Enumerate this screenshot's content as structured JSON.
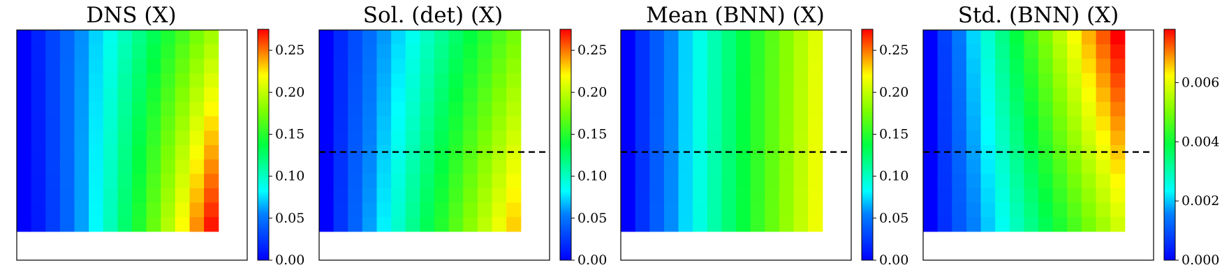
{
  "chart_data": [
    {
      "type": "heatmap",
      "title": "DNS (X)",
      "grid": false,
      "legend": "colorbar-right",
      "value_range": [
        0,
        0.275
      ],
      "colorbar_ticks": [
        "0.00",
        "0.05",
        "0.10",
        "0.15",
        "0.20",
        "0.25"
      ],
      "colorbar_tick_values": [
        0.0,
        0.05,
        0.1,
        0.15,
        0.2,
        0.25
      ],
      "grid_size": [
        14,
        14
      ],
      "data_extent": [
        0.875,
        0.875
      ],
      "field_model": "dns",
      "left_edge_value": 0.0,
      "right_edge_value_range": [
        0.19,
        0.27
      ],
      "dashed_line_value": null
    },
    {
      "type": "heatmap",
      "title": "Sol. (det) (X)",
      "grid": false,
      "legend": "colorbar-right",
      "value_range": [
        0,
        0.275
      ],
      "colorbar_ticks": [
        "0.00",
        "0.05",
        "0.10",
        "0.15",
        "0.20",
        "0.25"
      ],
      "colorbar_tick_values": [
        0.0,
        0.05,
        0.1,
        0.15,
        0.2,
        0.25
      ],
      "grid_size": [
        14,
        14
      ],
      "data_extent": [
        0.875,
        0.875
      ],
      "field_model": "linear",
      "left_edge_value": 0.0,
      "right_edge_value_range": [
        0.175,
        0.23
      ],
      "dashed_line_value": 0.53
    },
    {
      "type": "heatmap",
      "title": "Mean (BNN) (X)",
      "grid": false,
      "legend": "colorbar-right",
      "value_range": [
        0,
        0.275
      ],
      "colorbar_ticks": [
        "0.00",
        "0.05",
        "0.10",
        "0.15",
        "0.20",
        "0.25"
      ],
      "colorbar_tick_values": [
        0.0,
        0.05,
        0.1,
        0.15,
        0.2,
        0.25
      ],
      "grid_size": [
        14,
        14
      ],
      "data_extent": [
        0.875,
        0.875
      ],
      "field_model": "linear",
      "left_edge_value": 0.0,
      "right_edge_value_range": [
        0.21,
        0.215
      ],
      "dashed_line_value": 0.53
    },
    {
      "type": "heatmap",
      "title": "Std. (BNN) (X)",
      "grid": false,
      "legend": "colorbar-right",
      "value_range": [
        0,
        0.0078
      ],
      "colorbar_ticks": [
        "0.000",
        "0.002",
        "0.004",
        "0.006"
      ],
      "colorbar_tick_values": [
        0.0,
        0.002,
        0.004,
        0.006
      ],
      "grid_size": [
        14,
        14
      ],
      "data_extent": [
        0.875,
        0.875
      ],
      "field_model": "linear",
      "left_edge_value": 0.0,
      "right_edge_value_range": [
        0.0078,
        0.0058
      ],
      "dashed_line_value": 0.53
    }
  ]
}
